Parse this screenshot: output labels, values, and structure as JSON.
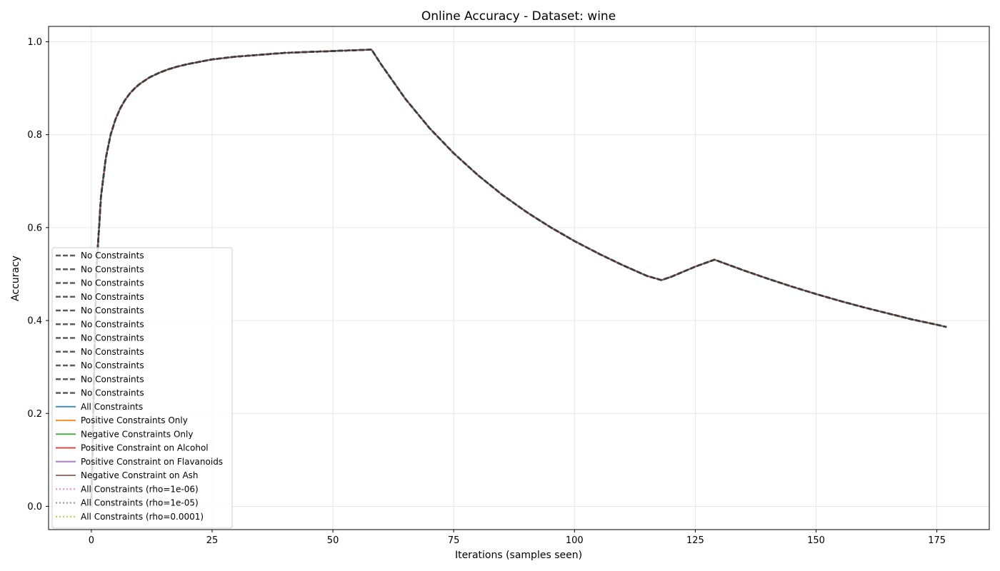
{
  "chart_data": {
    "type": "line",
    "title": "Online Accuracy - Dataset: wine",
    "xlabel": "Iterations (samples seen)",
    "ylabel": "Accuracy",
    "xlim": [
      -8.85,
      185.85
    ],
    "ylim": [
      -0.05,
      1.033
    ],
    "xticks": [
      0,
      25,
      50,
      75,
      100,
      125,
      150,
      175
    ],
    "yticks": [
      0.0,
      0.2,
      0.4,
      0.6,
      0.8,
      1.0
    ],
    "ytick_labels": [
      "0.0",
      "0.2",
      "0.4",
      "0.6",
      "0.8",
      "1.0"
    ],
    "grid": true,
    "legend_position": "lower left",
    "x": [
      0,
      1,
      2,
      3,
      4,
      5,
      6,
      7,
      8,
      9,
      10,
      12,
      14,
      16,
      18,
      20,
      25,
      30,
      35,
      40,
      45,
      50,
      55,
      58,
      60,
      65,
      70,
      75,
      80,
      85,
      90,
      95,
      100,
      105,
      110,
      115,
      118,
      120,
      125,
      129,
      130,
      135,
      140,
      145,
      150,
      155,
      160,
      165,
      170,
      175,
      177
    ],
    "y": [
      0.0,
      0.5,
      0.667,
      0.75,
      0.8,
      0.833,
      0.857,
      0.875,
      0.889,
      0.9,
      0.909,
      0.923,
      0.933,
      0.941,
      0.947,
      0.952,
      0.962,
      0.968,
      0.972,
      0.976,
      0.978,
      0.98,
      0.982,
      0.983,
      0.951,
      0.877,
      0.814,
      0.76,
      0.713,
      0.671,
      0.634,
      0.601,
      0.571,
      0.544,
      0.519,
      0.496,
      0.487,
      0.494,
      0.516,
      0.531,
      0.527,
      0.508,
      0.49,
      0.473,
      0.457,
      0.442,
      0.428,
      0.415,
      0.402,
      0.391,
      0.386
    ],
    "series": [
      {
        "name": "No Constraints",
        "color": "#404040",
        "style": "dashed"
      },
      {
        "name": "No Constraints",
        "color": "#404040",
        "style": "dashed"
      },
      {
        "name": "No Constraints",
        "color": "#404040",
        "style": "dashed"
      },
      {
        "name": "No Constraints",
        "color": "#404040",
        "style": "dashed"
      },
      {
        "name": "No Constraints",
        "color": "#404040",
        "style": "dashed"
      },
      {
        "name": "No Constraints",
        "color": "#404040",
        "style": "dashed"
      },
      {
        "name": "No Constraints",
        "color": "#404040",
        "style": "dashed"
      },
      {
        "name": "No Constraints",
        "color": "#404040",
        "style": "dashed"
      },
      {
        "name": "No Constraints",
        "color": "#404040",
        "style": "dashed"
      },
      {
        "name": "No Constraints",
        "color": "#404040",
        "style": "dashed"
      },
      {
        "name": "No Constraints",
        "color": "#404040",
        "style": "dashed"
      },
      {
        "name": "All Constraints",
        "color": "#1f77b4",
        "style": "solid"
      },
      {
        "name": "Positive Constraints Only",
        "color": "#ff7f0e",
        "style": "solid"
      },
      {
        "name": "Negative Constraints Only",
        "color": "#2ca02c",
        "style": "solid"
      },
      {
        "name": "Positive Constraint on Alcohol",
        "color": "#d62728",
        "style": "solid"
      },
      {
        "name": "Positive Constraint on Flavanoids",
        "color": "#9467bd",
        "style": "solid"
      },
      {
        "name": "Negative Constraint on Ash",
        "color": "#8c564b",
        "style": "solid"
      },
      {
        "name": "All Constraints (rho=1e-06)",
        "color": "#e377c2",
        "style": "dotted"
      },
      {
        "name": "All Constraints (rho=1e-05)",
        "color": "#7f7f7f",
        "style": "dotted"
      },
      {
        "name": "All Constraints (rho=0.0001)",
        "color": "#bcbd22",
        "style": "dotted"
      }
    ]
  }
}
